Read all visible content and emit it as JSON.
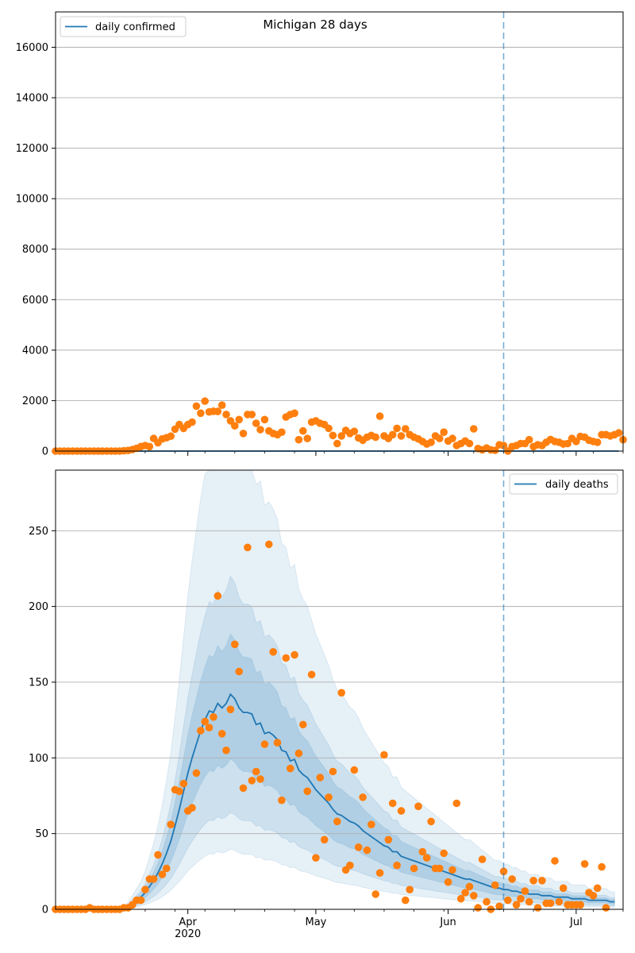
{
  "chart_data": [
    {
      "type": "line",
      "title": "Michigan 28 days",
      "xlabel": "",
      "ylabel": "",
      "ylim": [
        0,
        17400
      ],
      "yticks": [
        0,
        2000,
        4000,
        6000,
        8000,
        10000,
        12000,
        14000,
        16000
      ],
      "grid": "horizontal",
      "legend": {
        "position": "top-left",
        "entries": [
          "daily confirmed"
        ]
      },
      "forecast_start": "2020-06-14",
      "x_start": "2020-03-01",
      "x_end": "2020-07-12",
      "series": [
        {
          "name": "daily confirmed",
          "kind": "line",
          "color": "#1f77b4",
          "x_start": "2020-03-01",
          "values_note_free": true,
          "values": [
            0,
            0,
            0,
            0,
            0,
            0,
            0,
            0,
            0,
            0,
            0,
            0,
            0,
            0,
            0,
            0,
            0,
            0,
            0,
            0,
            0,
            0,
            0,
            0,
            0,
            0,
            0,
            0,
            0,
            0,
            0,
            0,
            0,
            0,
            0,
            0,
            0,
            0,
            0,
            0,
            0,
            0,
            0,
            0,
            0,
            0,
            0,
            0,
            0,
            0,
            0,
            0,
            0,
            0,
            0,
            0,
            0,
            0,
            0,
            0,
            0,
            0,
            0,
            0,
            0,
            0,
            0,
            0,
            0,
            0,
            0,
            0,
            0,
            0,
            0,
            0,
            0,
            0,
            0,
            0,
            0,
            0,
            0,
            0,
            0,
            0,
            0,
            0,
            0,
            0,
            0,
            0,
            0,
            0,
            0,
            0,
            0,
            0,
            0,
            0,
            0,
            0,
            0,
            0,
            0,
            0,
            0,
            0,
            0,
            0,
            0,
            0,
            0,
            0,
            0,
            0,
            0,
            0,
            0,
            0,
            0,
            0,
            0,
            0,
            0,
            0,
            0,
            0,
            0,
            0,
            0,
            0,
            0
          ]
        },
        {
          "name": "",
          "kind": "observed",
          "color": "#ff7f0e",
          "x_start": "2020-03-01",
          "values": [
            0,
            0,
            0,
            0,
            0,
            0,
            0,
            0,
            0,
            0,
            0,
            0,
            0,
            0,
            0,
            0,
            12,
            25,
            60,
            110,
            180,
            220,
            180,
            500,
            330,
            480,
            530,
            590,
            870,
            1050,
            900,
            1050,
            1150,
            1780,
            1500,
            1980,
            1550,
            1580,
            1570,
            1820,
            1450,
            1200,
            1000,
            1250,
            700,
            1450,
            1450,
            1100,
            850,
            1250,
            800,
            700,
            650,
            750,
            1350,
            1450,
            1500,
            450,
            800,
            500,
            1150,
            1200,
            1100,
            1050,
            900,
            620,
            300,
            600,
            820,
            700,
            780,
            520,
            430,
            550,
            620,
            550,
            1380,
            600,
            500,
            650,
            900,
            600,
            880,
            650,
            550,
            480,
            380,
            280,
            350,
            600,
            500,
            750,
            400,
            500,
            220,
            300,
            400,
            300,
            880,
            100,
            50,
            120,
            50,
            30,
            250,
            220,
            0,
            180,
            220,
            300,
            300,
            450,
            180,
            250,
            220,
            350,
            460,
            380,
            350,
            280,
            300,
            500,
            380,
            580,
            550,
            430,
            380,
            350,
            650,
            650,
            600,
            650,
            720,
            450
          ]
        }
      ]
    },
    {
      "type": "line",
      "title": "",
      "xlabel": "",
      "ylabel": "",
      "ylim": [
        0,
        290
      ],
      "yticks": [
        0,
        50,
        100,
        150,
        200,
        250
      ],
      "xticks": [
        "Apr\n2020",
        "May",
        "Jun",
        "Jul"
      ],
      "xtick_dates": [
        "2020-04-01",
        "2020-05-01",
        "2020-06-01",
        "2020-07-01"
      ],
      "grid": "horizontal",
      "legend": {
        "position": "top-right",
        "entries": [
          "daily deaths"
        ]
      },
      "forecast_start": "2020-06-14",
      "x_start": "2020-03-01",
      "x_end": "2020-07-12",
      "series": [
        {
          "name": "daily deaths",
          "kind": "line",
          "color": "#1f77b4",
          "x_start": "2020-03-01",
          "values": [
            0,
            0,
            0,
            0,
            0,
            0,
            0,
            0,
            0,
            0,
            0,
            0,
            0,
            0,
            0,
            0,
            1,
            2,
            4,
            6,
            8,
            11,
            15,
            19,
            24,
            30,
            37,
            45,
            55,
            66,
            78,
            90,
            100,
            109,
            118,
            125,
            131,
            130,
            136,
            133,
            136,
            142,
            139,
            133,
            130,
            130,
            129,
            122,
            123,
            116,
            117,
            115,
            112,
            105,
            104,
            98,
            99,
            92,
            89,
            87,
            83,
            79,
            76,
            73,
            70,
            66,
            63,
            62,
            60,
            58,
            57,
            55,
            52,
            50,
            48,
            46,
            44,
            42,
            41,
            38,
            38,
            35,
            34,
            33,
            32,
            31,
            30,
            29,
            28,
            27,
            26,
            25,
            24,
            23,
            22,
            21,
            20,
            20,
            19,
            18,
            17,
            16,
            15,
            14,
            14,
            13,
            13,
            12,
            12,
            11,
            11,
            10,
            10,
            10,
            9,
            9,
            9,
            8,
            8,
            8,
            8,
            7,
            7,
            7,
            7,
            6,
            6,
            6,
            6,
            6,
            5,
            5
          ]
        },
        {
          "name": "",
          "kind": "observed",
          "color": "#ff7f0e",
          "x_start": "2020-03-01",
          "values": [
            0,
            0,
            0,
            0,
            0,
            0,
            0,
            0,
            1,
            0,
            0,
            0,
            0,
            0,
            0,
            0,
            1,
            1,
            3,
            6,
            6,
            13,
            20,
            20,
            36,
            23,
            27,
            56,
            79,
            78,
            83,
            65,
            67,
            90,
            118,
            124,
            120,
            127,
            207,
            116,
            105,
            132,
            175,
            157,
            80,
            239,
            85,
            91,
            86,
            109,
            241,
            170,
            110,
            72,
            166,
            93,
            168,
            103,
            122,
            78,
            155,
            34,
            87,
            46,
            74,
            91,
            58,
            143,
            26,
            29,
            92,
            41,
            74,
            39,
            56,
            10,
            24,
            102,
            46,
            70,
            29,
            65,
            6,
            13,
            27,
            68,
            38,
            34,
            58,
            27,
            27,
            37,
            18,
            26,
            70,
            7,
            11,
            15,
            9,
            1,
            33,
            5,
            0,
            16,
            2,
            25,
            6,
            20,
            3,
            7,
            12,
            5,
            19,
            1,
            19,
            4,
            4,
            32,
            5,
            14,
            3,
            3,
            3,
            3,
            30,
            11,
            9,
            14,
            28,
            1
          ]
        },
        {
          "name": "",
          "kind": "band",
          "color": "#1f77b4",
          "band_scale_outer": [
            0.28,
            2.3
          ],
          "band_scale_mid": [
            0.45,
            1.55
          ],
          "band_scale_inner": [
            0.7,
            1.28
          ]
        }
      ]
    }
  ]
}
